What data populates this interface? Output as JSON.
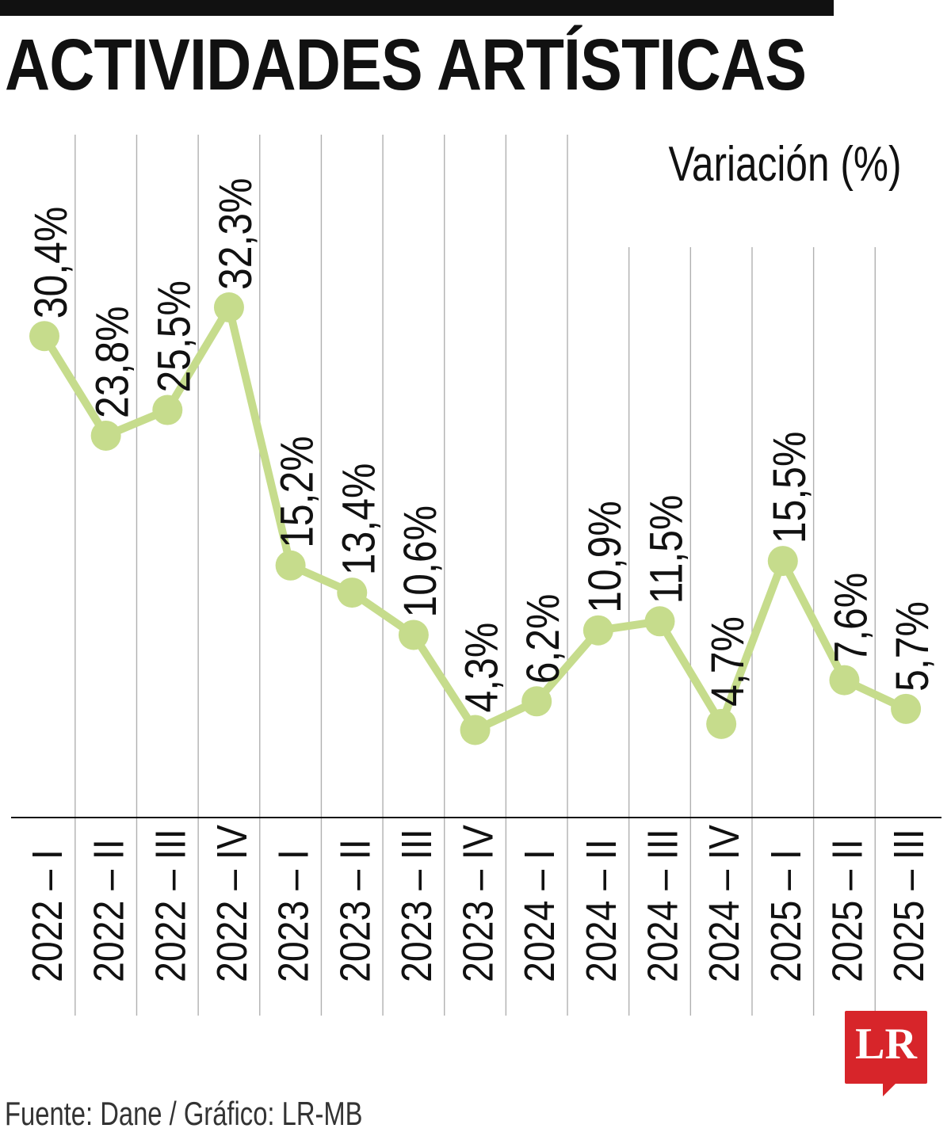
{
  "title": "ACTIVIDADES ARTÍSTICAS",
  "unit_label": "Variación (%)",
  "source": "Fuente: Dane / Gráfico: LR-MB",
  "logo_text": "LR",
  "colors": {
    "line": "#c6dc8c",
    "marker": "#c6dc8c",
    "gridline": "#b0b0b0",
    "axis": "#111111",
    "text": "#111111",
    "logo": "#d7252a",
    "top_rule": "#111111"
  },
  "chart_data": {
    "type": "line",
    "title": "ACTIVIDADES ARTÍSTICAS",
    "ylabel": "Variación (%)",
    "categories": [
      "2022 – I",
      "2022 – II",
      "2022 – III",
      "2022 – IV",
      "2023 – I",
      "2023 – II",
      "2023 – III",
      "2023 – IV",
      "2024 – I",
      "2024 – II",
      "2024 – III",
      "2024 – IV",
      "2025 – I",
      "2025 – II",
      "2025 – III"
    ],
    "values": [
      30.4,
      23.8,
      25.5,
      32.3,
      15.2,
      13.4,
      10.6,
      4.3,
      6.2,
      10.9,
      11.5,
      4.7,
      15.5,
      7.6,
      5.7
    ],
    "value_labels": [
      "30,4%",
      "23,8%",
      "25,5%",
      "32,3%",
      "15,2%",
      "13,4%",
      "10,6%",
      "4,3%",
      "6,2%",
      "10,9%",
      "11,5%",
      "4,7%",
      "15,5%",
      "7,6%",
      "5,7%"
    ],
    "ylim": [
      -1.5,
      32.3
    ],
    "grid": "vertical",
    "legend": "none"
  }
}
